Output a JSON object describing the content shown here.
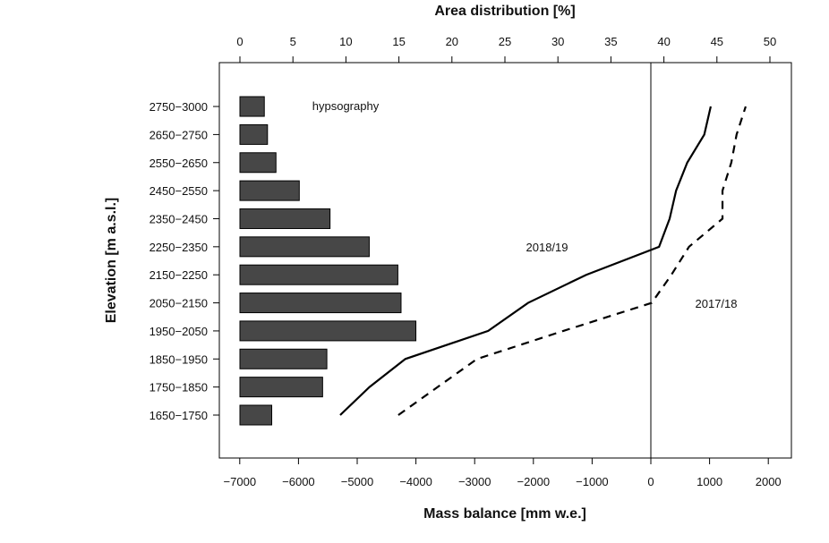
{
  "chart_data": {
    "type": "bar+line",
    "top_axis": {
      "label": "Area distribution [%]",
      "range": [
        0,
        50
      ],
      "ticks": [
        0,
        5,
        10,
        15,
        20,
        25,
        30,
        35,
        40,
        45,
        50
      ]
    },
    "bottom_axis": {
      "label": "Mass balance [mm w.e.]",
      "range": [
        -7000,
        2000
      ],
      "ticks": [
        -7000,
        -6000,
        -5000,
        -4000,
        -3000,
        -2000,
        -1000,
        0,
        1000,
        2000
      ]
    },
    "ylabel": "Elevation [m a.s.l.]",
    "categories": [
      "1650−1750",
      "1750−1850",
      "1850−1950",
      "1950−2050",
      "2050−2150",
      "2150−2250",
      "2250−2350",
      "2350−2450",
      "2450−2550",
      "2550−2650",
      "2650−2750",
      "2750−3000"
    ],
    "bars": {
      "name": "hypsography",
      "color": "#474747",
      "values": [
        3.0,
        7.8,
        8.2,
        16.6,
        15.2,
        14.9,
        12.2,
        8.5,
        5.6,
        3.4,
        2.6,
        2.3
      ]
    },
    "series": [
      {
        "name": "2018/19",
        "style": "solid",
        "values": [
          -5290,
          -4790,
          -4180,
          -2770,
          -2090,
          -1100,
          140,
          320,
          430,
          620,
          910,
          1020
        ]
      },
      {
        "name": "2017/18",
        "style": "dashed",
        "values": [
          -4300,
          -3630,
          -2960,
          -1490,
          15,
          350,
          650,
          1220,
          1220,
          1370,
          1460,
          1615
        ]
      }
    ],
    "zero_line": 0,
    "grid": false
  }
}
